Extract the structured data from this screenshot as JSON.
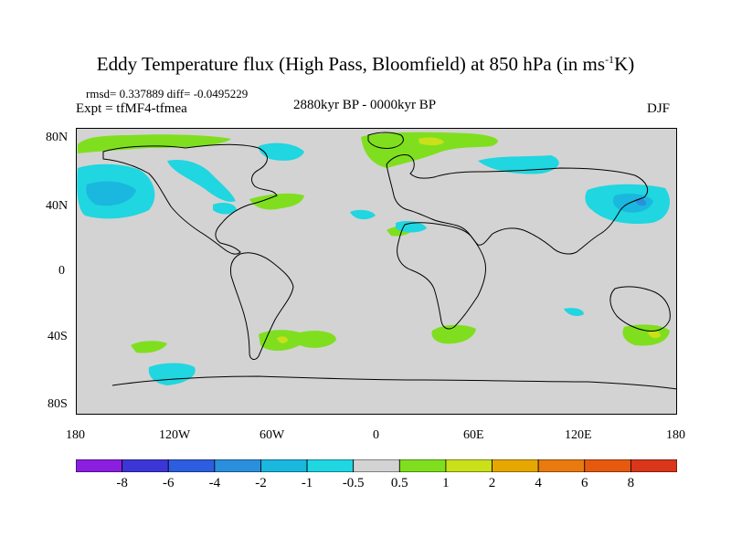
{
  "title": {
    "main": "Eddy Temperature flux (High Pass, Bloomfield) at 850 hPa (in ms",
    "sup": "-1",
    "tail": "K)"
  },
  "stats": "rmsd= 0.337889 diff= -0.0495229",
  "expt": "Expt = tfMF4-tfmea",
  "period": "2880kyr BP - 0000kyr BP",
  "season": "DJF",
  "colors": {
    "land_ocean": "#d3d3d3",
    "pos1": "#7fdf1f",
    "pos2": "#c9e01a",
    "pos4": "#e6a800",
    "neg1": "#20d6e0",
    "neg2": "#1ab7df",
    "neg4": "#2a8fdc"
  },
  "map": {
    "lat_labels": [
      "80N",
      "40N",
      "0",
      "40S",
      "80S"
    ],
    "lon_labels": [
      "180",
      "120W",
      "60W",
      "0",
      "60E",
      "120E",
      "180"
    ]
  },
  "colorbar": {
    "labels": [
      "-8",
      "-6",
      "-4",
      "-2",
      "-1",
      "-0.5",
      "0.5",
      "1",
      "2",
      "4",
      "6",
      "8"
    ],
    "colors": [
      "#8a1fe0",
      "#3c36d6",
      "#2d5ee0",
      "#2a8fdc",
      "#1ab7df",
      "#20d6e0",
      "#d3d3d3",
      "#7fdf1f",
      "#c9e01a",
      "#e6a800",
      "#e97a10",
      "#e65a10",
      "#d9361a"
    ]
  }
}
